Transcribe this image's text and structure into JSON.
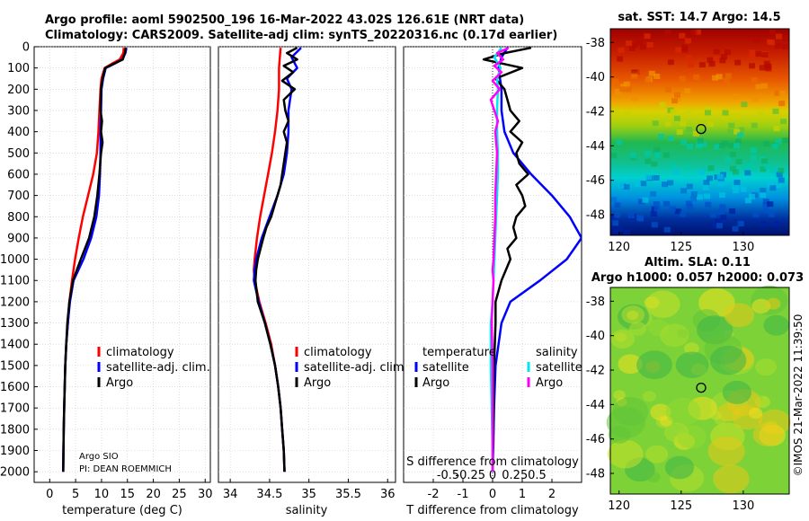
{
  "header": {
    "line1": "Argo profile: aoml 5902500_196 16-Mar-2022 43.02S 126.61E (NRT data)",
    "line2": "Climatology: CARS2009. Satellite-adj clim: synTS_20220316.nc (0.17d earlier)"
  },
  "colors": {
    "climatology": "#ff0000",
    "satellite": "#0000ff",
    "argo": "#000000",
    "salinity_argo": "#ff00ff",
    "salinity_satellite": "#00e5ee"
  },
  "depth_ticks": [
    "0",
    "100",
    "200",
    "300",
    "400",
    "500",
    "600",
    "700",
    "800",
    "900",
    "1000",
    "1100",
    "1200",
    "1300",
    "1400",
    "1500",
    "1600",
    "1700",
    "1800",
    "1900",
    "2000"
  ],
  "chart_data": [
    {
      "id": "temperature",
      "type": "line",
      "xlabel": "temperature (deg C)",
      "ylabel": "depth",
      "xlim": [
        -3,
        31
      ],
      "ylim": [
        2050,
        0
      ],
      "xticks": [
        "0",
        "5",
        "10",
        "15",
        "20",
        "25",
        "30"
      ],
      "xtick_values": [
        0,
        5,
        10,
        15,
        20,
        25,
        30
      ],
      "legend": [
        "climatology",
        "satellite-adj. clim.",
        "Argo"
      ],
      "footnote1": "Argo SIO",
      "footnote2": "PI: DEAN ROEMMICH",
      "series": [
        {
          "name": "climatology",
          "depth": [
            5,
            30,
            60,
            80,
            100,
            150,
            200,
            300,
            400,
            500,
            600,
            700,
            800,
            900,
            1000,
            1100,
            1200,
            1300,
            1400,
            1500,
            1600,
            1700,
            1800,
            1900,
            2000
          ],
          "values": [
            14.3,
            14.2,
            13.5,
            12.0,
            10.6,
            10.0,
            9.8,
            9.6,
            9.4,
            9.1,
            8.4,
            7.4,
            6.4,
            5.6,
            4.9,
            4.3,
            3.8,
            3.5,
            3.2,
            3.0,
            2.9,
            2.8,
            2.7,
            2.65,
            2.6
          ]
        },
        {
          "name": "satellite-adj. clim.",
          "depth": [
            5,
            30,
            60,
            80,
            100,
            150,
            200,
            300,
            400,
            500,
            600,
            700,
            800,
            900,
            1000,
            1100,
            1200,
            1300,
            1400,
            1500,
            1600,
            1700,
            1800,
            1900,
            2000
          ],
          "values": [
            14.8,
            14.6,
            14.0,
            12.5,
            10.8,
            10.3,
            10.0,
            9.9,
            9.8,
            9.8,
            9.7,
            9.5,
            9.0,
            8.0,
            6.5,
            4.6,
            3.9,
            3.5,
            3.2,
            3.0,
            2.9,
            2.8,
            2.7,
            2.65,
            2.6
          ]
        },
        {
          "name": "Argo",
          "depth": [
            5,
            30,
            60,
            80,
            100,
            150,
            200,
            300,
            350,
            400,
            450,
            500,
            600,
            700,
            800,
            900,
            1000,
            1100,
            1200,
            1300,
            1400,
            1500,
            1600,
            1700,
            1800,
            1900,
            2000
          ],
          "values": [
            14.7,
            14.5,
            14.1,
            12.4,
            10.7,
            10.2,
            9.9,
            9.8,
            10.1,
            9.9,
            10.2,
            9.9,
            9.6,
            9.2,
            8.6,
            7.6,
            6.0,
            4.5,
            3.8,
            3.4,
            3.2,
            3.0,
            2.9,
            2.8,
            2.7,
            2.65,
            2.6
          ]
        }
      ]
    },
    {
      "id": "salinity",
      "type": "line",
      "xlabel": "salinity",
      "ylabel": "depth",
      "xlim": [
        33.85,
        36.1
      ],
      "ylim": [
        2050,
        0
      ],
      "xticks": [
        "34",
        "34.5",
        "35",
        "35.5",
        "36"
      ],
      "xtick_values": [
        34,
        34.5,
        35,
        35.5,
        36
      ],
      "legend": [
        "climatology",
        "satellite-adj. clim.",
        "Argo"
      ],
      "series": [
        {
          "name": "climatology",
          "depth": [
            5,
            50,
            100,
            200,
            300,
            400,
            500,
            600,
            700,
            800,
            900,
            1000,
            1050,
            1100,
            1200,
            1300,
            1400,
            1500,
            1600,
            1700,
            1800,
            1900,
            2000
          ],
          "values": [
            34.64,
            34.63,
            34.62,
            34.62,
            34.6,
            34.57,
            34.53,
            34.48,
            34.43,
            34.38,
            34.34,
            34.31,
            34.3,
            34.31,
            34.37,
            34.45,
            34.52,
            34.57,
            34.61,
            34.64,
            34.66,
            34.68,
            34.69
          ]
        },
        {
          "name": "satellite-adj. clim.",
          "depth": [
            5,
            50,
            100,
            150,
            200,
            300,
            400,
            500,
            600,
            700,
            800,
            900,
            1000,
            1050,
            1100,
            1200,
            1300,
            1400,
            1500,
            1600,
            1700,
            1800,
            1900,
            2000
          ],
          "values": [
            34.9,
            34.78,
            34.85,
            34.72,
            34.78,
            34.74,
            34.74,
            34.72,
            34.68,
            34.6,
            34.5,
            34.4,
            34.33,
            34.31,
            34.3,
            34.36,
            34.44,
            34.51,
            34.57,
            34.61,
            34.64,
            34.66,
            34.68,
            34.69
          ]
        },
        {
          "name": "Argo",
          "depth": [
            5,
            30,
            60,
            90,
            120,
            160,
            200,
            250,
            300,
            350,
            400,
            450,
            500,
            550,
            600,
            650,
            700,
            750,
            800,
            850,
            900,
            1000,
            1050,
            1100,
            1200,
            1300,
            1400,
            1500,
            1600,
            1700,
            1800,
            1900,
            2000
          ],
          "values": [
            34.85,
            34.72,
            34.85,
            34.68,
            34.8,
            34.66,
            34.82,
            34.68,
            34.7,
            34.74,
            34.68,
            34.72,
            34.7,
            34.68,
            34.66,
            34.64,
            34.6,
            34.56,
            34.52,
            34.46,
            34.42,
            34.35,
            34.33,
            34.32,
            34.35,
            34.44,
            34.51,
            34.57,
            34.61,
            34.64,
            34.66,
            34.68,
            34.69
          ]
        }
      ]
    },
    {
      "id": "differences",
      "type": "line",
      "xlabel": "T difference from climatology",
      "xlabel_top": "S difference from climatology",
      "ylabel": "depth",
      "xlim": [
        -3,
        3
      ],
      "ylim": [
        2050,
        0
      ],
      "xticks": [
        "-2",
        "-1",
        "0",
        "1",
        "2"
      ],
      "xtick_values": [
        -2,
        -1,
        0,
        1,
        2
      ],
      "sticks": [
        "-0.5",
        "-0.25",
        "0",
        "0.25",
        "0.5"
      ],
      "stick_values": [
        -1.5,
        -0.75,
        0,
        0.75,
        1.5
      ],
      "legend_t_title": "temperature",
      "legend_s_title": "salinity",
      "legend_t": [
        "satellite",
        "Argo"
      ],
      "legend_s": [
        "satellite",
        "Argo"
      ],
      "series": [
        {
          "name": "T satellite",
          "depth": [
            5,
            50,
            100,
            200,
            300,
            400,
            500,
            600,
            700,
            800,
            900,
            1000,
            1100,
            1200,
            1300,
            1500,
            1700,
            1900,
            2000
          ],
          "values": [
            0.5,
            0.3,
            0.2,
            0.3,
            0.3,
            0.4,
            0.7,
            1.3,
            2.0,
            2.6,
            3.0,
            2.5,
            1.6,
            0.6,
            0.3,
            0.1,
            0.05,
            0.02,
            0.0
          ]
        },
        {
          "name": "T Argo",
          "depth": [
            5,
            30,
            60,
            100,
            150,
            200,
            250,
            300,
            350,
            400,
            450,
            500,
            550,
            600,
            650,
            700,
            750,
            800,
            850,
            900,
            950,
            1000,
            1100,
            1200,
            1300,
            1500,
            1700,
            1900,
            2000
          ],
          "values": [
            1.3,
            0.4,
            -0.3,
            1.0,
            0.1,
            0.4,
            0.5,
            0.6,
            0.9,
            0.6,
            1.0,
            0.8,
            0.9,
            1.2,
            0.8,
            1.0,
            1.1,
            0.8,
            0.7,
            0.8,
            0.5,
            0.6,
            0.3,
            0.1,
            0.1,
            0.05,
            0.03,
            0.01,
            0.0
          ]
        },
        {
          "name": "S satellite",
          "depth": [
            5,
            50,
            100,
            150,
            200,
            300,
            400,
            500,
            600,
            700,
            800,
            900,
            1000,
            1100,
            1200,
            1300,
            1500,
            1700,
            1900,
            2000
          ],
          "values": [
            0.1,
            0.02,
            0.09,
            0.05,
            0.06,
            0.05,
            0.05,
            0.06,
            0.06,
            0.05,
            0.04,
            0.03,
            0.02,
            0.01,
            0.0,
            -0.02,
            -0.02,
            -0.01,
            0.0,
            0.0
          ]
        },
        {
          "name": "S Argo",
          "depth": [
            5,
            30,
            60,
            90,
            120,
            160,
            200,
            250,
            300,
            350,
            400,
            500,
            600,
            700,
            800,
            900,
            1000,
            1050,
            1100,
            1200,
            1300,
            1500,
            1700,
            1900,
            2000
          ],
          "values": [
            0.18,
            0.05,
            0.12,
            0.02,
            0.1,
            0.0,
            0.08,
            -0.02,
            0.02,
            0.06,
            0.03,
            0.05,
            0.04,
            0.03,
            0.03,
            0.02,
            0.01,
            0.0,
            0.01,
            0.0,
            -0.01,
            0.0,
            0.0,
            0.0,
            0.0
          ]
        }
      ]
    },
    {
      "id": "sst_map",
      "type": "heatmap",
      "title": "sat. SST: 14.7 Argo: 14.5",
      "xticks": [
        "120",
        "125",
        "130"
      ],
      "xtick_values": [
        120,
        125,
        130
      ],
      "yticks": [
        "-38",
        "-40",
        "-42",
        "-44",
        "-46",
        "-48"
      ],
      "ytick_values": [
        -38,
        -40,
        -42,
        -44,
        -46,
        -48
      ],
      "xlim": [
        119.3,
        133.7
      ],
      "ylim": [
        -49.2,
        -37.2
      ],
      "marker": [
        126.61,
        -43.02
      ]
    },
    {
      "id": "sla_map",
      "type": "heatmap",
      "title1": "Altim. SLA: 0.11",
      "title2": "Argo h1000: 0.057 h2000: 0.073",
      "xticks": [
        "120",
        "125",
        "130"
      ],
      "xtick_values": [
        120,
        125,
        130
      ],
      "yticks": [
        "-38",
        "-40",
        "-42",
        "-44",
        "-46",
        "-48"
      ],
      "ytick_values": [
        -38,
        -40,
        -42,
        -44,
        -46,
        -48
      ],
      "xlim": [
        119.3,
        133.7
      ],
      "ylim": [
        -49.2,
        -37.2
      ],
      "marker": [
        126.61,
        -43.02
      ]
    }
  ],
  "credit": "©IMOS 21-Mar-2022 11:39:50"
}
